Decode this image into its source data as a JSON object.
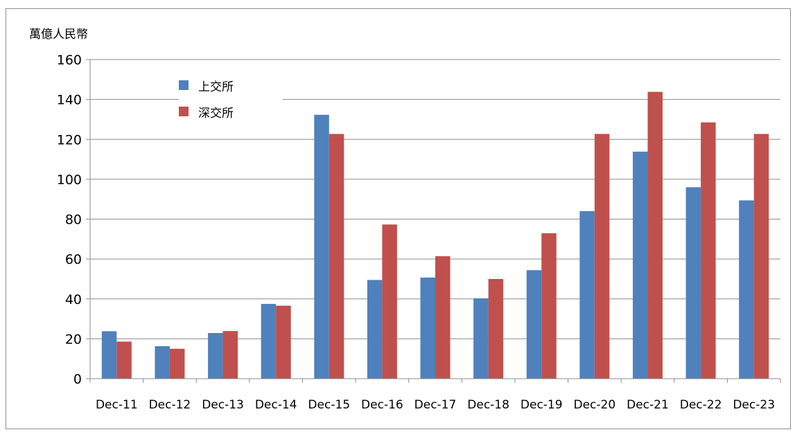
{
  "chart_data": {
    "type": "bar",
    "y_unit_label": "萬億人民幣",
    "categories": [
      "Dec-11",
      "Dec-12",
      "Dec-13",
      "Dec-14",
      "Dec-15",
      "Dec-16",
      "Dec-17",
      "Dec-18",
      "Dec-19",
      "Dec-20",
      "Dec-21",
      "Dec-22",
      "Dec-23"
    ],
    "series": [
      {
        "name": "上交所",
        "color": "#4f81bd",
        "values": [
          23.8,
          16.3,
          22.9,
          37.5,
          132.3,
          49.5,
          50.7,
          40.3,
          54.4,
          84.0,
          113.8,
          96.0,
          89.4
        ]
      },
      {
        "name": "深交所",
        "color": "#c0504d",
        "values": [
          18.6,
          15.0,
          23.9,
          36.6,
          122.7,
          77.3,
          61.4,
          50.0,
          72.9,
          122.7,
          143.8,
          128.5,
          122.7
        ]
      }
    ],
    "ylim": [
      0,
      160
    ],
    "yticks": [
      0,
      20,
      40,
      60,
      80,
      100,
      120,
      140,
      160
    ],
    "grid": true,
    "legend_position": "top-left"
  }
}
